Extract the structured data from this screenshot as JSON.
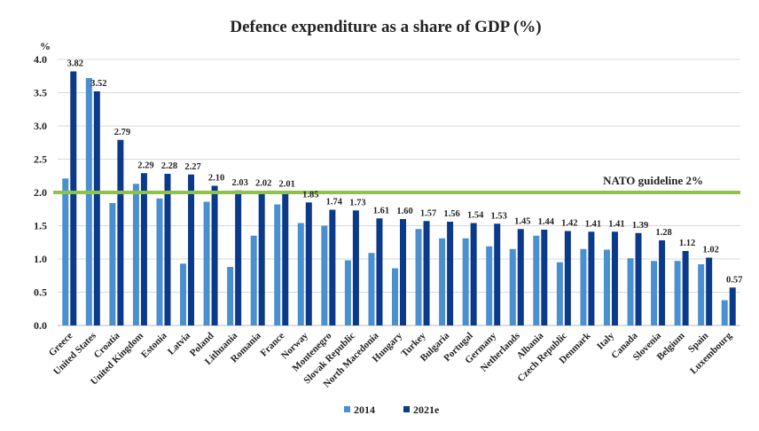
{
  "chart_data": {
    "type": "bar",
    "title": "Defence expenditure as a share of GDP (%)",
    "ylabel": "%",
    "xlabel": "",
    "ylim": [
      0,
      4.0
    ],
    "yticks": [
      "0.0",
      "0.5",
      "1.0",
      "1.5",
      "2.0",
      "2.5",
      "3.0",
      "3.5",
      "4.0"
    ],
    "grid": true,
    "legend_position": "bottom",
    "categories": [
      "Greece",
      "United States",
      "Croatia",
      "United Kingdom",
      "Estonia",
      "Latvia",
      "Poland",
      "Lithuania",
      "Romania",
      "France",
      "Norway",
      "Montenegro",
      "Slovak Republic",
      "North Macedonia",
      "Hungary",
      "Turkey",
      "Bulgaria",
      "Portugal",
      "Germany",
      "Netherlands",
      "Albania",
      "Czech Republic",
      "Denmark",
      "Italy",
      "Canada",
      "Slovenia",
      "Belgium",
      "Spain",
      "Luxembourg"
    ],
    "series": [
      {
        "name": "2014",
        "color": "#4a90d0",
        "values": [
          2.21,
          3.72,
          1.84,
          2.13,
          1.91,
          0.93,
          1.86,
          0.88,
          1.35,
          1.82,
          1.54,
          1.5,
          0.98,
          1.09,
          0.86,
          1.45,
          1.31,
          1.31,
          1.19,
          1.15,
          1.35,
          0.95,
          1.15,
          1.14,
          1.01,
          0.97,
          0.97,
          0.92,
          0.38
        ]
      },
      {
        "name": "2021e",
        "color": "#0c3a8a",
        "values": [
          3.82,
          3.52,
          2.79,
          2.29,
          2.28,
          2.27,
          2.1,
          2.03,
          2.02,
          2.01,
          1.85,
          1.74,
          1.73,
          1.61,
          1.6,
          1.57,
          1.56,
          1.54,
          1.53,
          1.45,
          1.44,
          1.42,
          1.41,
          1.41,
          1.39,
          1.28,
          1.12,
          1.02,
          0.57
        ],
        "labels": [
          "3.82",
          "3.52",
          "2.79",
          "2.29",
          "2.28",
          "2.27",
          "2.10",
          "2.03",
          "2.02",
          "2.01",
          "1.85",
          "1.74",
          "1.73",
          "1.61",
          "1.60",
          "1.57",
          "1.56",
          "1.54",
          "1.53",
          "1.45",
          "1.44",
          "1.42",
          "1.41",
          "1.41",
          "1.39",
          "1.28",
          "1.12",
          "1.02",
          "0.57"
        ]
      }
    ],
    "reference_line": {
      "value": 2.0,
      "label": "NATO guideline 2%",
      "color": "#8cc63f"
    }
  }
}
